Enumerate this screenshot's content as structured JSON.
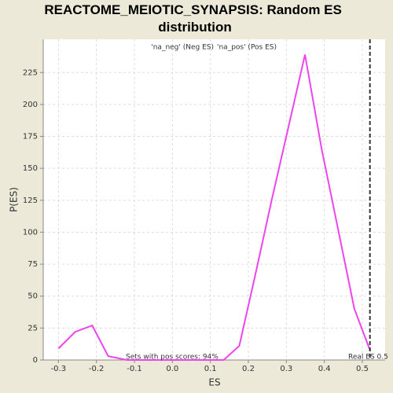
{
  "chart_data": {
    "type": "line",
    "title": "REACTOME_MEIOTIC_SYNAPSIS: Random ES distribution",
    "x_label": "ES",
    "y_label": "P(ES)",
    "legend": [
      "'na_neg' (Neg ES)",
      "'na_pos' (Pos ES)"
    ],
    "legend_colors": [
      "#3333cc",
      "#cc3333"
    ],
    "annotation": "Sets with pos scores: 94%",
    "real_es": 0.52,
    "real_es_label": "Real ES 0.5",
    "x": [
      -0.3,
      -0.256,
      -0.211,
      -0.169,
      -0.12,
      -0.075,
      -0.03,
      0.015,
      0.06,
      0.105,
      0.135,
      0.176,
      0.217,
      0.262,
      0.306,
      0.349,
      0.393,
      0.479,
      0.521
    ],
    "series": [
      {
        "name": "Random ES",
        "color": "#ee44ee",
        "values": [
          9,
          22,
          27,
          3,
          0,
          0,
          0,
          0,
          0,
          0,
          0,
          11,
          65,
          126,
          183,
          239,
          165,
          40,
          7
        ]
      }
    ],
    "xlim": [
      -0.34,
      0.56
    ],
    "ylim": [
      0,
      251
    ],
    "xticks": [
      -0.3,
      -0.2,
      -0.1,
      {
        "value": 0,
        "label": "0.0"
      },
      0.1,
      0.2,
      0.3,
      0.4,
      0.5
    ],
    "yticks": [
      0,
      25,
      50,
      75,
      100,
      125,
      150,
      175,
      200,
      225
    ],
    "grid": true
  }
}
